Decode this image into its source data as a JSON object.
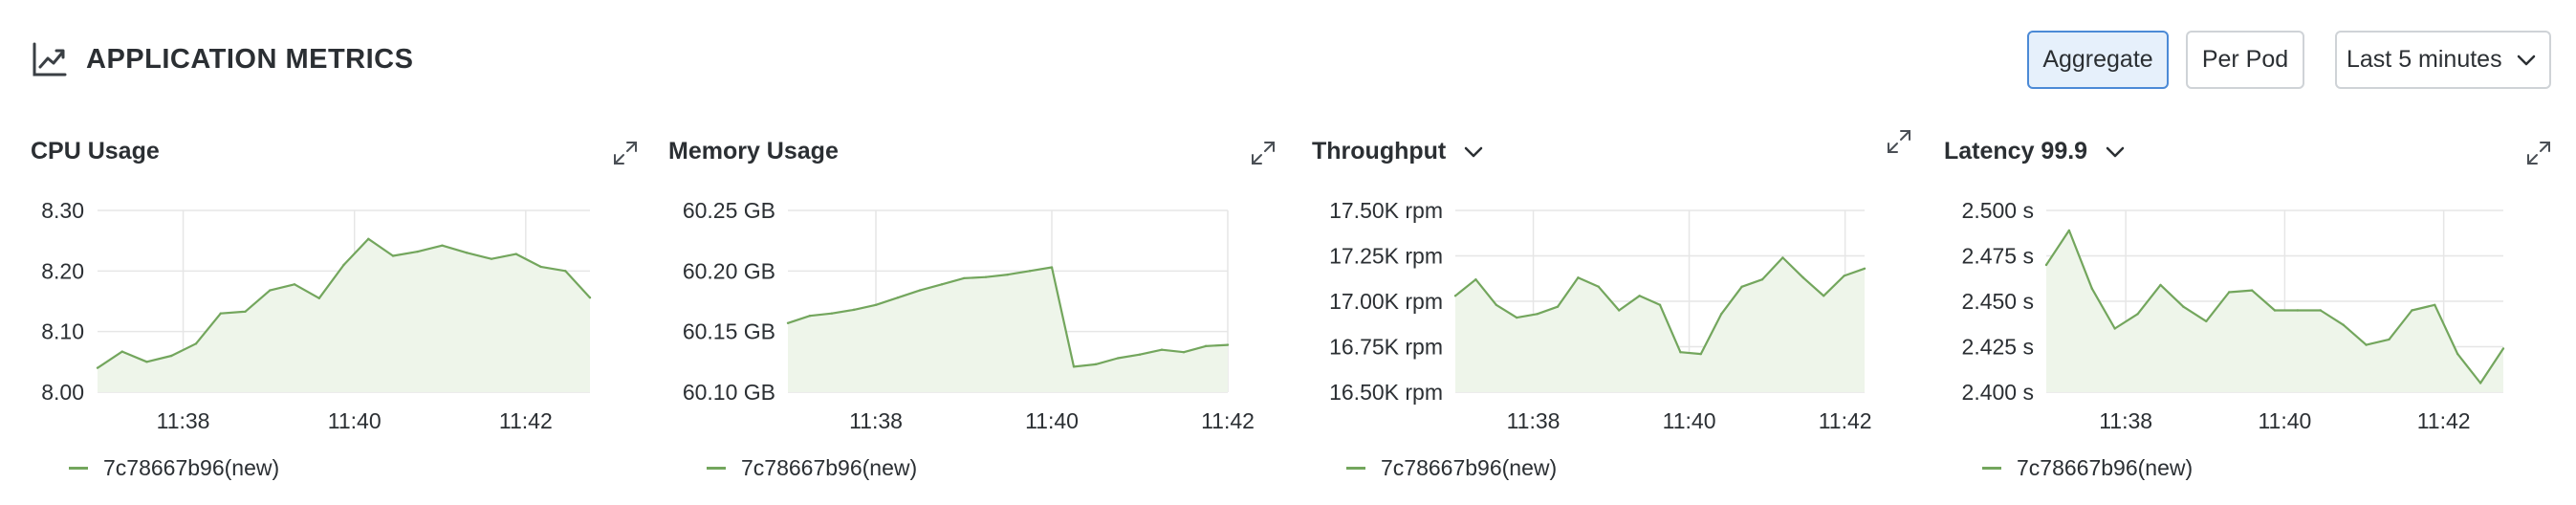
{
  "header": {
    "title": "APPLICATION METRICS",
    "title_icon": "trend-chart-icon",
    "buttons": {
      "aggregate": "Aggregate",
      "per_pod": "Per Pod"
    },
    "time_range": "Last 5 minutes"
  },
  "colors": {
    "series": "#73a65d",
    "fill": "#eef5ea",
    "grid": "#e6e6e6",
    "active_button_bg": "#e6f0fb",
    "active_button_border": "#4c8ad6"
  },
  "panels": [
    {
      "title": "CPU Usage",
      "has_dropdown": false,
      "legend": "7c78667b96(new)"
    },
    {
      "title": "Memory Usage",
      "has_dropdown": false,
      "legend": "7c78667b96(new)"
    },
    {
      "title": "Throughput",
      "has_dropdown": true,
      "legend": "7c78667b96(new)"
    },
    {
      "title": "Latency 99.9",
      "has_dropdown": true,
      "legend": "7c78667b96(new)"
    }
  ],
  "chart_data": [
    {
      "type": "area",
      "title": "CPU Usage",
      "xlabel": "",
      "ylabel": "",
      "x_range": [
        11.37,
        11.4275
      ],
      "xticks": [
        {
          "value": 11.38,
          "label": "11:38"
        },
        {
          "value": 11.4,
          "label": "11:40"
        },
        {
          "value": 11.42,
          "label": "11:42"
        }
      ],
      "ylim": [
        8.0,
        8.3
      ],
      "yticks": [
        {
          "value": 8.0,
          "label": "8.00"
        },
        {
          "value": 8.1,
          "label": "8.10"
        },
        {
          "value": 8.2,
          "label": "8.20"
        },
        {
          "value": 8.3,
          "label": "8.30"
        }
      ],
      "series": [
        {
          "name": "7c78667b96(new)",
          "values": [
            8.04,
            8.067,
            8.05,
            8.06,
            8.08,
            8.13,
            8.133,
            8.168,
            8.178,
            8.155,
            8.21,
            8.253,
            8.225,
            8.232,
            8.242,
            8.23,
            8.22,
            8.228,
            8.207,
            8.2,
            8.156
          ]
        }
      ],
      "grid": true
    },
    {
      "type": "area",
      "title": "Memory Usage",
      "xlabel": "",
      "ylabel": "",
      "x_range": [
        11.37,
        11.42
      ],
      "xticks": [
        {
          "value": 11.38,
          "label": "11:38"
        },
        {
          "value": 11.4,
          "label": "11:40"
        },
        {
          "value": 11.42,
          "label": "11:42"
        }
      ],
      "ylim": [
        60.1,
        60.25
      ],
      "yticks": [
        {
          "value": 60.1,
          "label": "60.10 GB"
        },
        {
          "value": 60.15,
          "label": "60.15 GB"
        },
        {
          "value": 60.2,
          "label": "60.20 GB"
        },
        {
          "value": 60.25,
          "label": "60.25 GB"
        }
      ],
      "series": [
        {
          "name": "7c78667b96(new)",
          "values": [
            60.157,
            60.163,
            60.165,
            60.168,
            60.172,
            60.178,
            60.184,
            60.189,
            60.194,
            60.195,
            60.197,
            60.2,
            60.203,
            60.121,
            60.123,
            60.128,
            60.131,
            60.135,
            60.133,
            60.138,
            60.139
          ]
        }
      ],
      "grid": true
    },
    {
      "type": "area",
      "title": "Throughput",
      "xlabel": "",
      "ylabel": "",
      "x_range": [
        11.37,
        11.4225
      ],
      "xticks": [
        {
          "value": 11.38,
          "label": "11:38"
        },
        {
          "value": 11.4,
          "label": "11:40"
        },
        {
          "value": 11.42,
          "label": "11:42"
        }
      ],
      "ylim": [
        16500,
        17500
      ],
      "yticks": [
        {
          "value": 16500,
          "label": "16.50K rpm"
        },
        {
          "value": 16750,
          "label": "16.75K rpm"
        },
        {
          "value": 17000,
          "label": "17.00K rpm"
        },
        {
          "value": 17250,
          "label": "17.25K rpm"
        },
        {
          "value": 17500,
          "label": "17.50K rpm"
        }
      ],
      "series": [
        {
          "name": "7c78667b96(new)",
          "values": [
            17030,
            17120,
            16980,
            16910,
            16930,
            16970,
            17130,
            17080,
            16950,
            17030,
            16980,
            16720,
            16710,
            16930,
            17080,
            17120,
            17240,
            17130,
            17030,
            17140,
            17180
          ]
        }
      ],
      "grid": true
    },
    {
      "type": "area",
      "title": "Latency 99.9",
      "xlabel": "",
      "ylabel": "",
      "x_range": [
        11.37,
        11.4275
      ],
      "xticks": [
        {
          "value": 11.38,
          "label": "11:38"
        },
        {
          "value": 11.4,
          "label": "11:40"
        },
        {
          "value": 11.42,
          "label": "11:42"
        }
      ],
      "ylim": [
        2.4,
        2.5
      ],
      "yticks": [
        {
          "value": 2.4,
          "label": "2.400 s"
        },
        {
          "value": 2.425,
          "label": "2.425 s"
        },
        {
          "value": 2.45,
          "label": "2.450 s"
        },
        {
          "value": 2.475,
          "label": "2.475 s"
        },
        {
          "value": 2.5,
          "label": "2.500 s"
        }
      ],
      "series": [
        {
          "name": "7c78667b96(new)",
          "values": [
            2.47,
            2.489,
            2.457,
            2.435,
            2.443,
            2.459,
            2.447,
            2.439,
            2.455,
            2.456,
            2.445,
            2.445,
            2.445,
            2.437,
            2.426,
            2.429,
            2.445,
            2.448,
            2.421,
            2.405,
            2.424
          ]
        }
      ],
      "grid": true
    }
  ]
}
